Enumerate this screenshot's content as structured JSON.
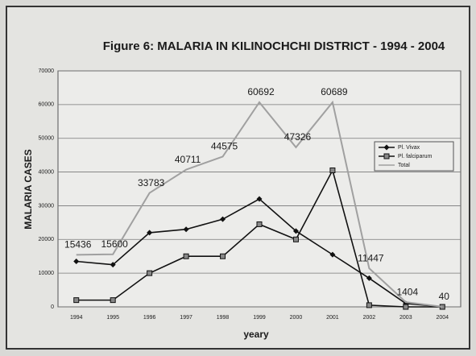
{
  "chart_data": {
    "type": "line",
    "title": "Figure 6: MALARIA IN KILINOCHCHI DISTRICT -  1994 - 2004",
    "x_label": "yeary",
    "y_label": "MALARIA CASES",
    "categories": [
      "1994",
      "1995",
      "1996",
      "1997",
      "1998",
      "1999",
      "2000",
      "2001",
      "2002",
      "2003",
      "2004"
    ],
    "series": [
      {
        "name": "Pl. Vivax",
        "color": "#111111",
        "marker": "diamond",
        "values": [
          13500,
          12500,
          22000,
          23000,
          26000,
          32000,
          22500,
          15500,
          8500,
          1000,
          0
        ]
      },
      {
        "name": "Pl. falciparum",
        "color": "#111111",
        "marker": "square",
        "values": [
          2000,
          2000,
          10000,
          15000,
          15000,
          24500,
          20000,
          40500,
          500,
          0,
          0
        ]
      },
      {
        "name": "Total",
        "color": "#a0a0a0",
        "marker": "none",
        "data_labels": true,
        "values": [
          15436,
          15600,
          33783,
          40711,
          44575,
          60692,
          47326,
          60689,
          11447,
          1404,
          40
        ]
      }
    ],
    "ylim": [
      0,
      70000
    ],
    "yticks": [
      0,
      10000,
      20000,
      30000,
      40000,
      50000,
      60000,
      70000
    ],
    "grid": true,
    "legend": "right"
  }
}
